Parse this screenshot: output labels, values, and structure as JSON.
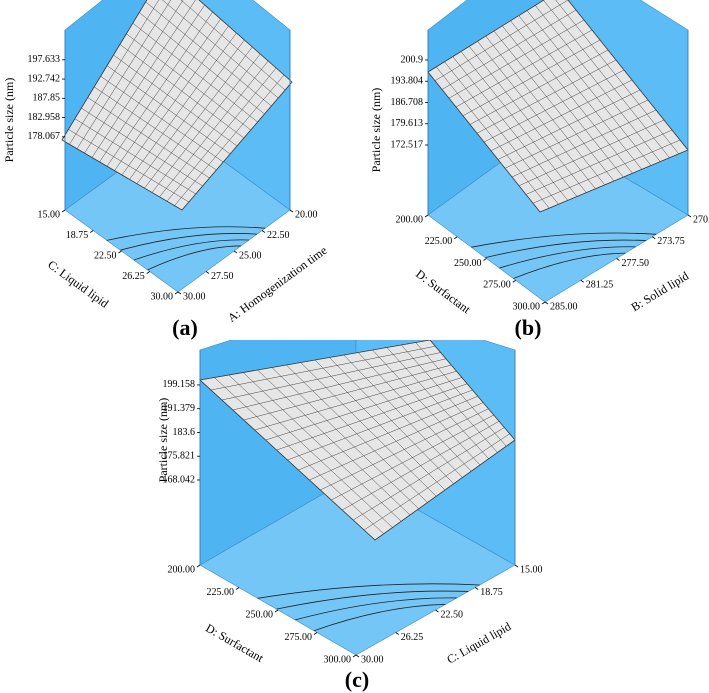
{
  "chart_data": [
    {
      "type": "surface",
      "panel_label": "(a)",
      "zlabel": "Particle size (nm)",
      "zlim": [
        159.5,
        205.2
      ],
      "zticks": [
        178.067,
        182.958,
        187.85,
        192.742,
        197.633
      ],
      "axes": [
        {
          "label": "C: Liquid lipid",
          "lim": [
            15,
            30
          ],
          "ticks": [
            {
              "value": 15,
              "label": "15.00"
            },
            {
              "value": 18.75,
              "label": "18.75"
            },
            {
              "value": 22.5,
              "label": "22.50"
            },
            {
              "value": 26.25,
              "label": "26.25"
            },
            {
              "value": 30,
              "label": "30.00"
            }
          ]
        },
        {
          "label": "A: Homogenization time",
          "lim": [
            20,
            30
          ],
          "ticks": [
            {
              "value": 20,
              "label": "20.00"
            },
            {
              "value": 22.5,
              "label": "22.50"
            },
            {
              "value": 25,
              "label": "25.00"
            },
            {
              "value": 27.5,
              "label": "27.50"
            },
            {
              "value": 30,
              "label": "30.00"
            }
          ]
        }
      ]
    },
    {
      "type": "surface",
      "panel_label": "(b)",
      "zlabel": "Particle size (nm)",
      "zlim": [
        149.15,
        210.9
      ],
      "zticks": [
        172.517,
        179.613,
        186.708,
        193.804,
        200.9
      ],
      "axes": [
        {
          "label": "D: Surfactant",
          "lim": [
            200,
            300
          ],
          "ticks": [
            {
              "value": 200,
              "label": "200.00"
            },
            {
              "value": 225,
              "label": "225.00"
            },
            {
              "value": 250,
              "label": "250.00"
            },
            {
              "value": 275,
              "label": "275.00"
            },
            {
              "value": 300,
              "label": "300.00"
            }
          ]
        },
        {
          "label": "B: Solid lipid",
          "lim": [
            270,
            285
          ],
          "ticks": [
            {
              "value": 270,
              "label": "270.00"
            },
            {
              "value": 273.75,
              "label": "273.75"
            },
            {
              "value": 277.5,
              "label": "277.50"
            },
            {
              "value": 281.25,
              "label": "281.25"
            },
            {
              "value": 285,
              "label": "285.00"
            }
          ]
        }
      ]
    },
    {
      "type": "surface",
      "panel_label": "(c)",
      "zlabel": "Particle size (nm)",
      "zlim": [
        140.2,
        210.6
      ],
      "zticks": [
        168.042,
        175.821,
        183.6,
        191.379,
        199.158
      ],
      "axes": [
        {
          "label": "D: Surfactant",
          "lim": [
            200,
            300
          ],
          "ticks": [
            {
              "value": 200,
              "label": "200.00"
            },
            {
              "value": 225,
              "label": "225.00"
            },
            {
              "value": 250,
              "label": "250.00"
            },
            {
              "value": 275,
              "label": "275.00"
            },
            {
              "value": 300,
              "label": "300.00"
            }
          ]
        },
        {
          "label": "C: Liquid lipid",
          "lim": [
            15,
            30
          ],
          "ticks": [
            {
              "value": 15,
              "label": "15.00"
            },
            {
              "value": 18.75,
              "label": "18.75"
            },
            {
              "value": 22.5,
              "label": "22.50"
            },
            {
              "value": 26.25,
              "label": "26.25"
            },
            {
              "value": 30,
              "label": "30.00"
            }
          ]
        }
      ]
    }
  ]
}
